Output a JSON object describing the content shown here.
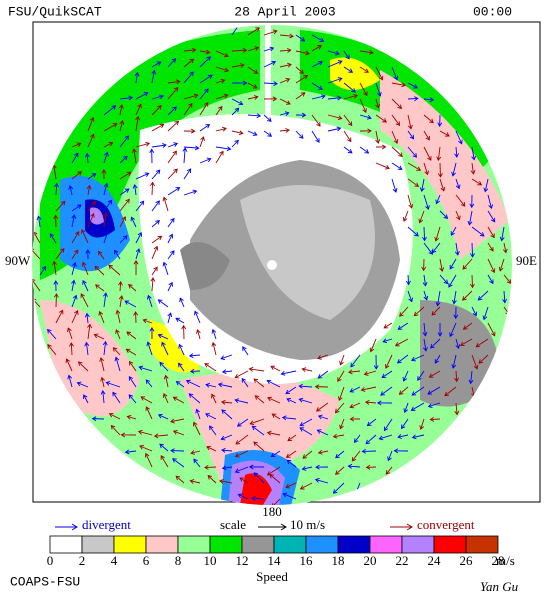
{
  "header": {
    "left": "FSU/QuikSCAT",
    "date": "28 April 2003",
    "time": "00:00"
  },
  "map": {
    "west_label": "90W",
    "east_label": "90E",
    "bottom_label": "180"
  },
  "legend": {
    "divergent": "divergent",
    "scale": "scale",
    "scale_value": "10 m/s",
    "convergent": "convergent"
  },
  "colorbar": {
    "ticks": [
      0,
      2,
      4,
      6,
      8,
      10,
      12,
      14,
      16,
      18,
      20,
      22,
      24,
      26,
      28
    ],
    "colors": [
      "#ffffff",
      "#c8c8c8",
      "#ffff00",
      "#ffc8c8",
      "#96ff96",
      "#00e600",
      "#969696",
      "#00b4b4",
      "#1e90ff",
      "#0000c8",
      "#ff64ff",
      "#b482ff",
      "#ff0000",
      "#c83200",
      "#000000"
    ],
    "unit": "m/s",
    "label": "Speed"
  },
  "footer": {
    "left": "COAPS-FSU",
    "right": "Yan Gu"
  }
}
